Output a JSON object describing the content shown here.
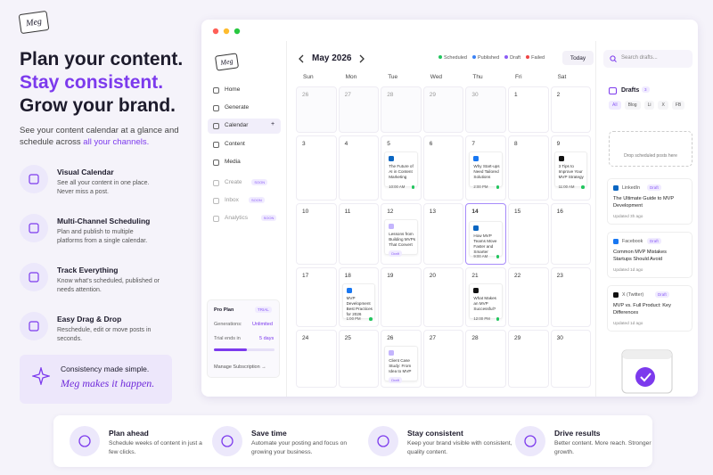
{
  "logo": "Meg",
  "hero": {
    "line1": "Plan your content.",
    "line2": "Stay consistent.",
    "line3": "Grow your brand.",
    "desc": "See your content calendar at a glance and schedule across",
    "desc_highlight": "all your channels."
  },
  "features": [
    {
      "title": "Visual Calendar",
      "text": "See all your content in one place. Never miss a post."
    },
    {
      "title": "Multi-Channel Scheduling",
      "text": "Plan and publish to multiple platforms from a single calendar."
    },
    {
      "title": "Track Everything",
      "text": "Know what's scheduled, published or needs attention."
    },
    {
      "title": "Easy Drag & Drop",
      "text": "Reschedule, edit or move posts in seconds."
    }
  ],
  "callout": {
    "text": "Consistency made simple.",
    "script": "Meg makes it happen."
  },
  "app": {
    "logo": "Meg",
    "nav": [
      {
        "label": "Home"
      },
      {
        "label": "Generate"
      },
      {
        "label": "Calendar",
        "active": true,
        "extra": "+"
      },
      {
        "label": "Content"
      },
      {
        "label": "Media"
      },
      {
        "label": "Create",
        "badge": "SOON"
      },
      {
        "label": "Inbox",
        "badge": "SOON"
      },
      {
        "label": "Analytics",
        "badge": "SOON"
      }
    ],
    "plan": {
      "name": "Pro Plan",
      "badge": "TRIAL",
      "gen_label": "Generations:",
      "gen_value": "Unlimited",
      "trial_label": "Trial ends in",
      "trial_value": "5 days",
      "link": "Manage Subscription →"
    },
    "month": "May 2026",
    "legend": [
      {
        "label": "Scheduled",
        "color": "#22c55e"
      },
      {
        "label": "Published",
        "color": "#3b82f6"
      },
      {
        "label": "Draft",
        "color": "#8b5cf6"
      },
      {
        "label": "Failed",
        "color": "#ef4444"
      }
    ],
    "today": "Today",
    "weekdays": [
      "Sun",
      "Mon",
      "Tue",
      "Wed",
      "Thu",
      "Fri",
      "Sat"
    ],
    "weeks": [
      [
        {
          "day": 26,
          "muted": true
        },
        {
          "day": 27,
          "muted": true
        },
        {
          "day": 28,
          "muted": true
        },
        {
          "day": 29,
          "muted": true
        },
        {
          "day": 30,
          "muted": true
        },
        {
          "day": 1
        },
        {
          "day": 2
        }
      ],
      [
        {
          "day": 3
        },
        {
          "day": 4
        },
        {
          "day": 5,
          "post": {
            "network": "linkedin",
            "title": "The Future of AI in Content Marketing",
            "time": "10:00 AM"
          }
        },
        {
          "day": 6
        },
        {
          "day": 7,
          "post": {
            "network": "facebook",
            "title": "Why Start-ups Need Tailored Solutions",
            "time": "2:00 PM"
          }
        },
        {
          "day": 8
        },
        {
          "day": 9,
          "post": {
            "network": "x",
            "title": "3 Tips to Improve Your MVP Strategy",
            "time": "11:00 AM"
          }
        }
      ],
      [
        {
          "day": 10
        },
        {
          "day": 11
        },
        {
          "day": 12,
          "post": {
            "network": "blog",
            "title": "Lessons from Building MVPs That Convert",
            "badge": "Draft"
          }
        },
        {
          "day": 13
        },
        {
          "day": 14,
          "today": true,
          "post": {
            "network": "linkedin",
            "title": "How MVP Teams Move Faster and Smarter",
            "time": "9:00 AM"
          }
        },
        {
          "day": 15
        },
        {
          "day": 16
        }
      ],
      [
        {
          "day": 17
        },
        {
          "day": 18,
          "post": {
            "network": "facebook",
            "title": "MVP Development Best Practices for 2026",
            "time": "1:00 PM"
          }
        },
        {
          "day": 19
        },
        {
          "day": 20
        },
        {
          "day": 21,
          "post": {
            "network": "x",
            "title": "What Makes an MVP Successful?",
            "time": "12:00 PM"
          }
        },
        {
          "day": 22
        },
        {
          "day": 23
        }
      ],
      [
        {
          "day": 24
        },
        {
          "day": 25
        },
        {
          "day": 26,
          "post": {
            "network": "blog",
            "title": "Client Case Study: From Idea to MVP",
            "badge": "Draft"
          }
        },
        {
          "day": 27
        },
        {
          "day": 28
        },
        {
          "day": 29
        },
        {
          "day": 30
        }
      ]
    ],
    "search": "Search drafts...",
    "drafts_title": "Drafts",
    "drafts_count": 3,
    "filters": [
      "All",
      "Blog",
      "Li",
      "X",
      "FB"
    ],
    "drop": "Drop scheduled posts here",
    "drafts": [
      {
        "network": "LinkedIn",
        "badge": "Draft",
        "title": "The Ultimate Guide to MVP Development",
        "updated": "Updated 3h ago"
      },
      {
        "network": "Facebook",
        "badge": "Draft",
        "title": "Common MVP Mistakes Startups Should Avoid",
        "updated": "Updated 1d ago"
      },
      {
        "network": "X (Twitter)",
        "badge": "Draft",
        "title": "MVP vs. Full Product: Key Differences",
        "updated": "Updated 1d ago"
      }
    ]
  },
  "benefits": [
    {
      "title": "Plan ahead",
      "text": "Schedule weeks of content in just a few clicks."
    },
    {
      "title": "Save time",
      "text": "Automate your posting and focus on growing your business."
    },
    {
      "title": "Stay consistent",
      "text": "Keep your brand visible with consistent, quality content."
    },
    {
      "title": "Drive results",
      "text": "Better content. More reach. Stronger growth."
    }
  ]
}
